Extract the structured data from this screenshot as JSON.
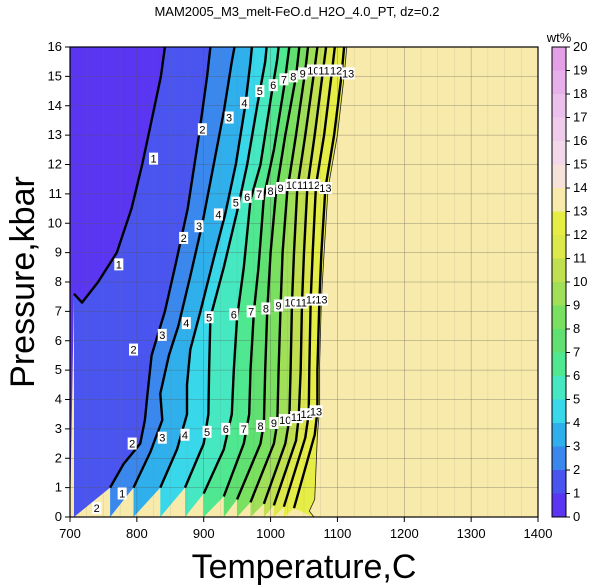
{
  "chart_data": {
    "type": "heatmap",
    "title": "MAM2005_M3_melt-FeO.d_H2O_4.0_PT, dz=0.2",
    "xlabel": "Temperature,C",
    "ylabel": "Pressure,kbar",
    "xlim": [
      700,
      1400
    ],
    "ylim": [
      0,
      16
    ],
    "xticks": [
      700,
      800,
      900,
      1000,
      1100,
      1200,
      1300,
      1400
    ],
    "yticks": [
      0,
      1,
      2,
      3,
      4,
      5,
      6,
      7,
      8,
      9,
      10,
      11,
      12,
      13,
      14,
      15,
      16
    ],
    "grid": true,
    "colorbar": {
      "unit": "wt%",
      "range": [
        0,
        20
      ],
      "ticks": [
        0,
        1,
        2,
        3,
        4,
        5,
        6,
        7,
        8,
        9,
        10,
        11,
        12,
        13,
        14,
        15,
        16,
        17,
        18,
        19,
        20
      ],
      "colors": [
        "#5a35f2",
        "#4a55f0",
        "#3a88ee",
        "#2fb0ec",
        "#38d8ea",
        "#45e8c0",
        "#4fe890",
        "#60e070",
        "#7ae060",
        "#a0e058",
        "#c0e050",
        "#dde84a",
        "#e6ee46",
        "#f8eaaa",
        "#f6e2d8",
        "#f2d8ea",
        "#f0ccec",
        "#ecc0ec",
        "#e8b0ea",
        "#e4a0e6"
      ],
      "no_data_color": "#f8eaaa"
    },
    "contours": [
      {
        "level": 1,
        "points": [
          [
            706,
            7.6
          ],
          [
            718,
            7.3
          ],
          [
            742,
            8.0
          ],
          [
            770,
            9.0
          ],
          [
            792,
            10.5
          ],
          [
            808,
            12.0
          ],
          [
            822,
            13.5
          ],
          [
            836,
            15.0
          ],
          [
            842,
            16.0
          ]
        ]
      },
      {
        "level": 2,
        "points": [
          [
            760,
            1.0
          ],
          [
            780,
            1.8
          ],
          [
            805,
            2.5
          ],
          [
            812,
            3.3
          ],
          [
            815,
            4.0
          ],
          [
            822,
            5.5
          ],
          [
            842,
            7.0
          ],
          [
            858,
            8.6
          ],
          [
            876,
            10.5
          ],
          [
            893,
            13.0
          ],
          [
            905,
            15.0
          ],
          [
            910,
            16.0
          ]
        ]
      },
      {
        "level": 3,
        "points": [
          [
            795,
            1.0
          ],
          [
            820,
            2.2
          ],
          [
            838,
            3.3
          ],
          [
            835,
            4.2
          ],
          [
            848,
            5.5
          ],
          [
            862,
            6.5
          ],
          [
            880,
            8.2
          ],
          [
            898,
            10.0
          ],
          [
            915,
            12.0
          ],
          [
            930,
            13.8
          ],
          [
            942,
            15.5
          ],
          [
            946,
            16.0
          ]
        ]
      },
      {
        "level": 4,
        "points": [
          [
            835,
            1.0
          ],
          [
            860,
            2.3
          ],
          [
            875,
            3.5
          ],
          [
            875,
            4.5
          ],
          [
            880,
            5.7
          ],
          [
            895,
            7.0
          ],
          [
            915,
            8.8
          ],
          [
            932,
            10.3
          ],
          [
            948,
            12.0
          ],
          [
            962,
            14.0
          ],
          [
            970,
            15.5
          ],
          [
            972,
            16.0
          ]
        ]
      },
      {
        "level": 5,
        "points": [
          [
            872,
            1.0
          ],
          [
            900,
            2.5
          ],
          [
            907,
            3.5
          ],
          [
            908,
            5.0
          ],
          [
            910,
            6.8
          ],
          [
            930,
            8.5
          ],
          [
            950,
            10.4
          ],
          [
            965,
            12.0
          ],
          [
            980,
            14.0
          ],
          [
            992,
            15.5
          ],
          [
            994,
            16.0
          ]
        ]
      },
      {
        "level": 6,
        "points": [
          [
            900,
            0.8
          ],
          [
            930,
            2.3
          ],
          [
            942,
            3.5
          ],
          [
            945,
            5.0
          ],
          [
            950,
            6.8
          ],
          [
            960,
            8.5
          ],
          [
            970,
            10.8
          ],
          [
            985,
            12.0
          ],
          [
            1000,
            14.2
          ],
          [
            1010,
            15.6
          ],
          [
            1012,
            16.0
          ]
        ]
      },
      {
        "level": 7,
        "points": [
          [
            930,
            0.7
          ],
          [
            960,
            2.5
          ],
          [
            968,
            3.5
          ],
          [
            970,
            5.0
          ],
          [
            975,
            7.0
          ],
          [
            982,
            8.5
          ],
          [
            990,
            10.9
          ],
          [
            1005,
            12.5
          ],
          [
            1020,
            14.6
          ],
          [
            1028,
            16.0
          ]
        ]
      },
      {
        "level": 8,
        "points": [
          [
            950,
            0.6
          ],
          [
            985,
            2.5
          ],
          [
            990,
            3.2
          ],
          [
            992,
            5.0
          ],
          [
            995,
            7.0
          ],
          [
            1000,
            9.0
          ],
          [
            1008,
            11.0
          ],
          [
            1022,
            13.0
          ],
          [
            1038,
            15.0
          ],
          [
            1043,
            16.0
          ]
        ]
      },
      {
        "level": 9,
        "points": [
          [
            970,
            0.5
          ],
          [
            1005,
            2.5
          ],
          [
            1010,
            3.2
          ],
          [
            1012,
            5.0
          ],
          [
            1015,
            7.2
          ],
          [
            1018,
            9.0
          ],
          [
            1025,
            11.1
          ],
          [
            1038,
            13.0
          ],
          [
            1052,
            15.2
          ],
          [
            1056,
            16.0
          ]
        ]
      },
      {
        "level": 10,
        "points": [
          [
            990,
            0.45
          ],
          [
            1022,
            2.5
          ],
          [
            1028,
            3.3
          ],
          [
            1030,
            5.0
          ],
          [
            1032,
            7.3
          ],
          [
            1035,
            9.0
          ],
          [
            1040,
            11.2
          ],
          [
            1052,
            13.0
          ],
          [
            1066,
            15.3
          ],
          [
            1070,
            16.0
          ]
        ]
      },
      {
        "level": 11,
        "points": [
          [
            1005,
            0.4
          ],
          [
            1038,
            2.6
          ],
          [
            1042,
            3.4
          ],
          [
            1045,
            5.0
          ],
          [
            1047,
            7.3
          ],
          [
            1050,
            9.0
          ],
          [
            1055,
            11.2
          ],
          [
            1066,
            13.0
          ],
          [
            1079,
            15.3
          ],
          [
            1083,
            16.0
          ]
        ]
      },
      {
        "level": 12,
        "points": [
          [
            1020,
            0.35
          ],
          [
            1052,
            2.7
          ],
          [
            1057,
            3.5
          ],
          [
            1058,
            5.0
          ],
          [
            1060,
            7.4
          ],
          [
            1063,
            9.0
          ],
          [
            1068,
            11.3
          ],
          [
            1080,
            13.0
          ],
          [
            1092,
            15.2
          ],
          [
            1096,
            16.0
          ]
        ]
      },
      {
        "level": 13,
        "points": [
          [
            1035,
            0.3
          ],
          [
            1066,
            2.8
          ],
          [
            1070,
            3.6
          ],
          [
            1070,
            5.0
          ],
          [
            1073,
            7.4
          ],
          [
            1076,
            9.0
          ],
          [
            1082,
            11.2
          ],
          [
            1095,
            13.0
          ],
          [
            1106,
            15.0
          ],
          [
            1110,
            16.0
          ]
        ]
      }
    ],
    "contour_labels": [
      {
        "text": "1",
        "x": 825,
        "y": 12.2
      },
      {
        "text": "1",
        "x": 773,
        "y": 8.6
      },
      {
        "text": "1",
        "x": 778,
        "y": 0.8
      },
      {
        "text": "2",
        "x": 898,
        "y": 13.2
      },
      {
        "text": "2",
        "x": 870,
        "y": 9.5
      },
      {
        "text": "2",
        "x": 795,
        "y": 5.7
      },
      {
        "text": "2",
        "x": 793,
        "y": 2.5
      },
      {
        "text": "2",
        "x": 740,
        "y": 0.3
      },
      {
        "text": "3",
        "x": 938,
        "y": 13.6
      },
      {
        "text": "3",
        "x": 893,
        "y": 9.9
      },
      {
        "text": "3",
        "x": 838,
        "y": 6.2
      },
      {
        "text": "3",
        "x": 838,
        "y": 2.7
      },
      {
        "text": "4",
        "x": 961,
        "y": 14.1
      },
      {
        "text": "4",
        "x": 922,
        "y": 10.3
      },
      {
        "text": "4",
        "x": 874,
        "y": 6.6
      },
      {
        "text": "4",
        "x": 872,
        "y": 2.8
      },
      {
        "text": "5",
        "x": 984,
        "y": 14.5
      },
      {
        "text": "5",
        "x": 948,
        "y": 10.7
      },
      {
        "text": "5",
        "x": 908,
        "y": 6.8
      },
      {
        "text": "5",
        "x": 905,
        "y": 2.9
      },
      {
        "text": "6",
        "x": 1004,
        "y": 14.7
      },
      {
        "text": "6",
        "x": 965,
        "y": 10.9
      },
      {
        "text": "6",
        "x": 945,
        "y": 6.9
      },
      {
        "text": "6",
        "x": 933,
        "y": 3.0
      },
      {
        "text": "7",
        "x": 1020,
        "y": 14.9
      },
      {
        "text": "7",
        "x": 983,
        "y": 11.0
      },
      {
        "text": "7",
        "x": 971,
        "y": 7.0
      },
      {
        "text": "7",
        "x": 960,
        "y": 3.0
      },
      {
        "text": "8",
        "x": 1034,
        "y": 15.0
      },
      {
        "text": "8",
        "x": 1000,
        "y": 11.1
      },
      {
        "text": "8",
        "x": 993,
        "y": 7.1
      },
      {
        "text": "8",
        "x": 985,
        "y": 3.1
      },
      {
        "text": "9",
        "x": 1048,
        "y": 15.1
      },
      {
        "text": "9",
        "x": 1015,
        "y": 11.2
      },
      {
        "text": "9",
        "x": 1012,
        "y": 7.2
      },
      {
        "text": "9",
        "x": 1005,
        "y": 3.2
      },
      {
        "text": "10",
        "x": 1064,
        "y": 15.2
      },
      {
        "text": "10",
        "x": 1032,
        "y": 11.3
      },
      {
        "text": "10",
        "x": 1030,
        "y": 7.3
      },
      {
        "text": "10",
        "x": 1022,
        "y": 3.3
      },
      {
        "text": "11",
        "x": 1080,
        "y": 15.2
      },
      {
        "text": "11",
        "x": 1048,
        "y": 11.3
      },
      {
        "text": "11",
        "x": 1046,
        "y": 7.3
      },
      {
        "text": "11",
        "x": 1039,
        "y": 3.4
      },
      {
        "text": "12",
        "x": 1098,
        "y": 15.2
      },
      {
        "text": "12",
        "x": 1065,
        "y": 11.3
      },
      {
        "text": "12",
        "x": 1062,
        "y": 7.4
      },
      {
        "text": "12",
        "x": 1054,
        "y": 3.5
      },
      {
        "text": "13",
        "x": 1116,
        "y": 15.1
      },
      {
        "text": "13",
        "x": 1082,
        "y": 11.2
      },
      {
        "text": "13",
        "x": 1076,
        "y": 7.4
      },
      {
        "text": "13",
        "x": 1068,
        "y": 3.6
      }
    ],
    "no_data_boundary": [
      [
        1065,
        0.0
      ],
      [
        1058,
        0.2
      ],
      [
        1066,
        0.6
      ],
      [
        1070,
        2.8
      ],
      [
        1073,
        3.6
      ],
      [
        1073,
        5.0
      ],
      [
        1076,
        7.4
      ],
      [
        1080,
        9.0
      ],
      [
        1086,
        11.2
      ],
      [
        1100,
        13.0
      ],
      [
        1110,
        15.0
      ],
      [
        1114,
        16.0
      ]
    ]
  }
}
